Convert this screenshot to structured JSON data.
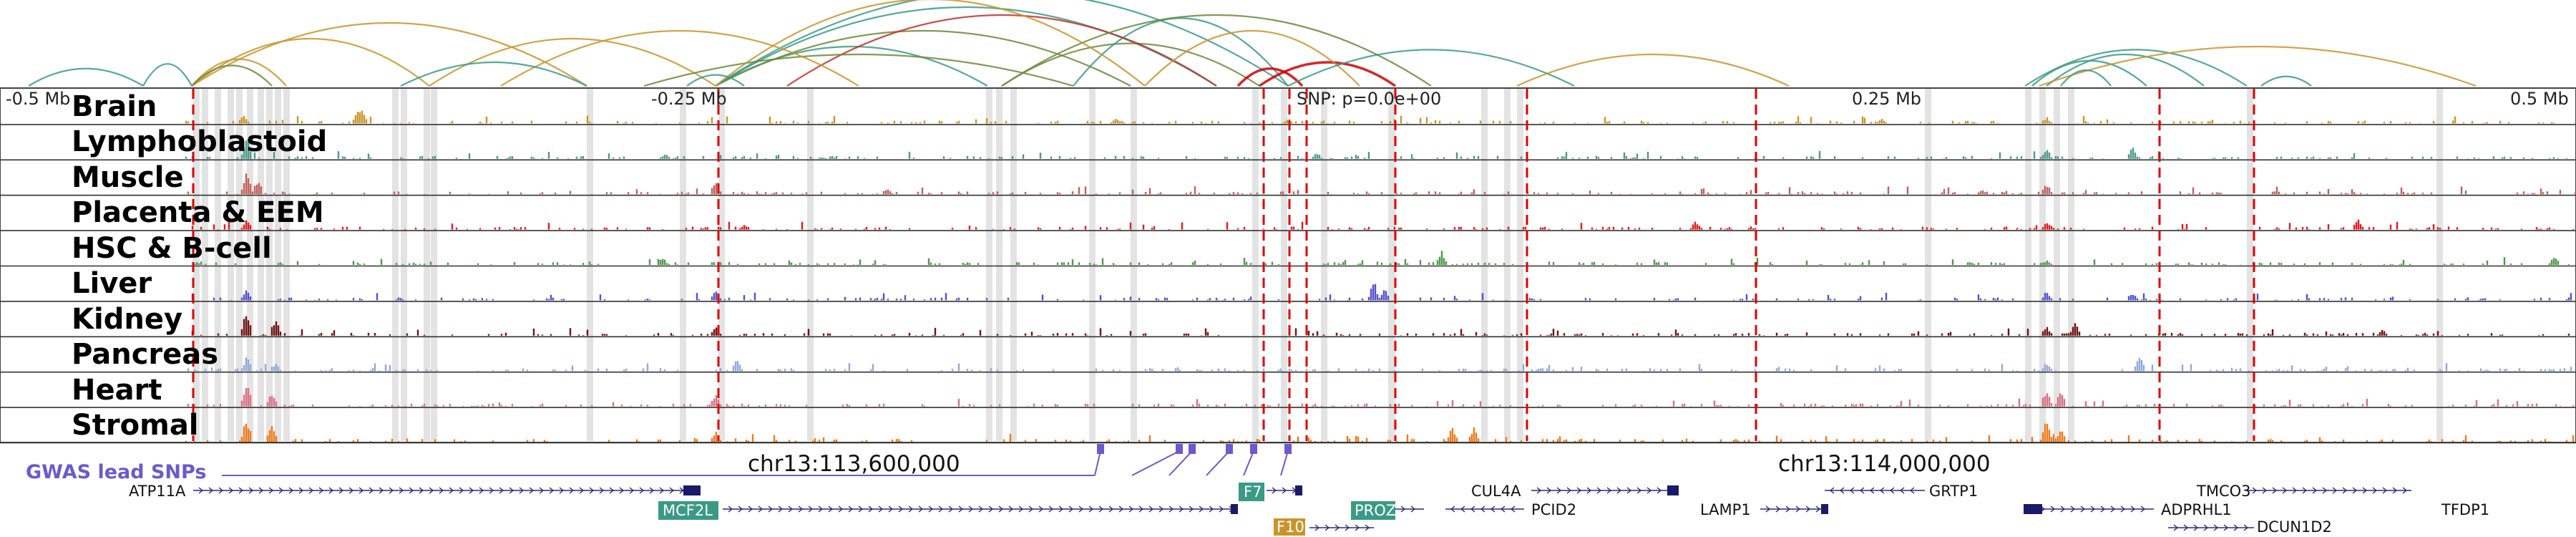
{
  "axis": {
    "left_label": "-0.5 Mb",
    "mid_left_label": "-0.25 Mb",
    "snp_label": "SNP: p=0.0e+00",
    "mid_right_label": "0.25 Mb",
    "right_label": "0.5 Mb"
  },
  "tracks": [
    {
      "name": "Brain",
      "color": "#c8952a"
    },
    {
      "name": "Lymphoblastoid",
      "color": "#4a9a86"
    },
    {
      "name": "Muscle",
      "color": "#c0605a"
    },
    {
      "name": "Placenta & EEM",
      "color": "#e41a1c"
    },
    {
      "name": "HSC & B-cell",
      "color": "#4e9a48"
    },
    {
      "name": "Liver",
      "color": "#5050d0"
    },
    {
      "name": "Kidney",
      "color": "#6e1212"
    },
    {
      "name": "Pancreas",
      "color": "#8faadc"
    },
    {
      "name": "Heart",
      "color": "#d87080"
    },
    {
      "name": "Stromal",
      "color": "#f07a1a"
    }
  ],
  "coordinates": {
    "left": "chr13:113,600,000",
    "right": "chr13:114,000,000"
  },
  "gwas": {
    "label": "GWAS lead SNPs",
    "color": "#6a5acd"
  },
  "genes": [
    {
      "name": "ATP11A",
      "boxed": false
    },
    {
      "name": "MCF2L",
      "boxed": true,
      "box_color": "#3a9a86"
    },
    {
      "name": "F7",
      "boxed": true,
      "box_color": "#3a9a86"
    },
    {
      "name": "F10",
      "boxed": true,
      "box_color": "#c8952a"
    },
    {
      "name": "PROZ",
      "boxed": true,
      "box_color": "#3a9a86"
    },
    {
      "name": "CUL4A",
      "boxed": false
    },
    {
      "name": "PCID2",
      "boxed": false
    },
    {
      "name": "LAMP1",
      "boxed": false
    },
    {
      "name": "GRTP1",
      "boxed": false
    },
    {
      "name": "TMCO3",
      "boxed": false
    },
    {
      "name": "ADPRHL1",
      "boxed": false
    },
    {
      "name": "DCUN1D2",
      "boxed": false
    },
    {
      "name": "TFDP1",
      "boxed": false
    }
  ],
  "colors": {
    "arc_brain": "#c8952a",
    "arc_lymph": "#3a9a86",
    "arc_green": "#6a8a3a",
    "arc_red": "#c0302a",
    "highlight_arc": "#cc0000",
    "dashed_line": "#e00000",
    "gene_line": "#2a2a7a"
  }
}
